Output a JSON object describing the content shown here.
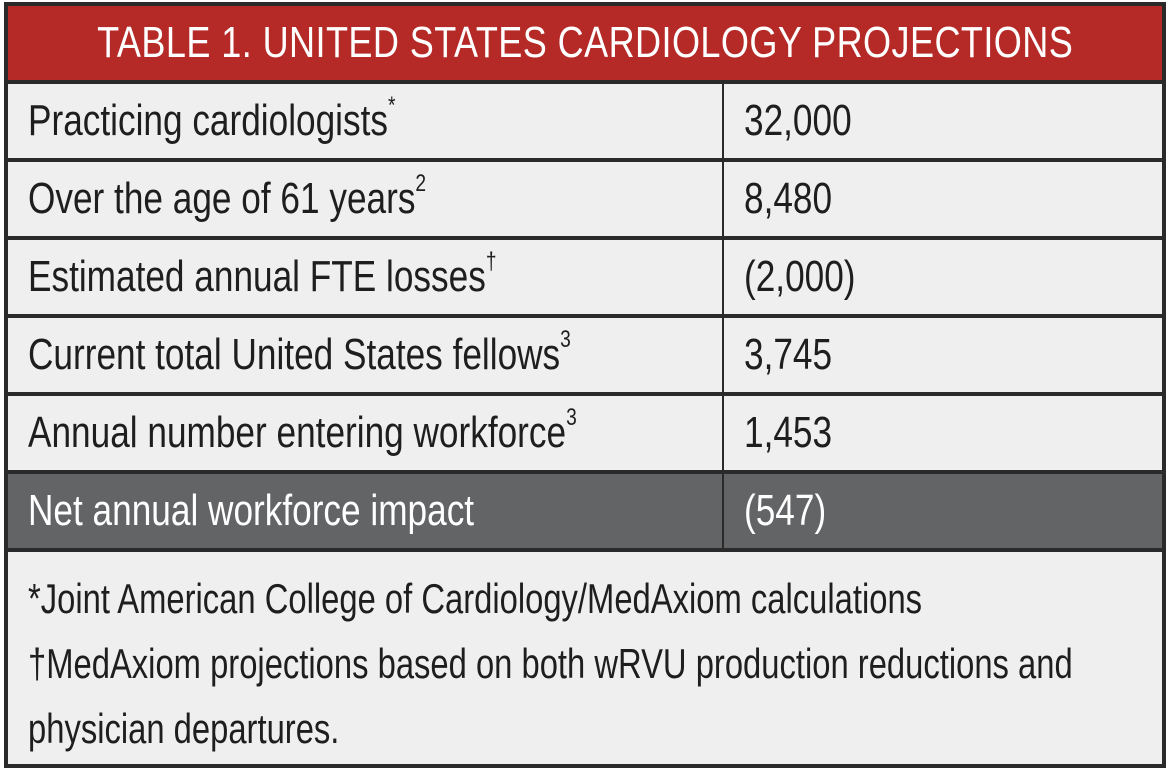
{
  "table": {
    "title": "TABLE 1.  UNITED STATES CARDIOLOGY PROJECTIONS",
    "rows": [
      {
        "label": "Practicing cardiologists",
        "sup": "*",
        "value": "32,000"
      },
      {
        "label": "Over the age of 61 years",
        "sup": "2",
        "value": "8,480"
      },
      {
        "label": "Estimated annual FTE losses",
        "sup": "†",
        "value": "(2,000)"
      },
      {
        "label": "Current total United States fellows",
        "sup": "3",
        "value": "3,745"
      },
      {
        "label": "Annual number entering workforce",
        "sup": "3",
        "value": "1,453"
      }
    ],
    "total_row": {
      "label": "Net annual workforce impact",
      "value": "(547)"
    },
    "footnotes": [
      "*Joint American College of Cardiology/MedAxiom calculations",
      "†MedAxiom projections based on both wRVU production reductions and",
      "physician departures."
    ]
  },
  "colors": {
    "header_red": "#b52a27",
    "total_gray": "#636466",
    "cell_bg": "#efefef",
    "border": "#2a2a2a"
  }
}
